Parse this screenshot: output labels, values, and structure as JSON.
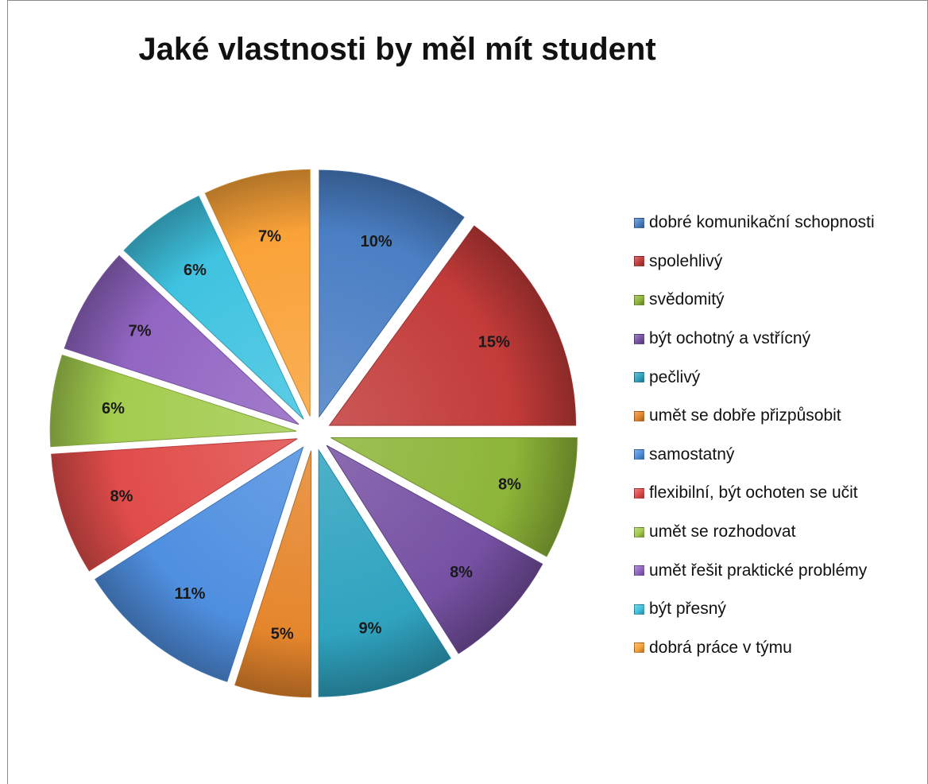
{
  "chart_data": {
    "type": "pie",
    "title": "Jaké vlastnosti by měl mít student",
    "legend_position": "right",
    "exploded": true,
    "slices": [
      {
        "label": "dobré komunikační schopnosti",
        "value": 10,
        "value_label": "10%",
        "color": "#4a7fc4"
      },
      {
        "label": "spolehlivý",
        "value": 15,
        "value_label": "15%",
        "color": "#c23b39"
      },
      {
        "label": "svědomitý",
        "value": 8,
        "value_label": "8%",
        "color": "#8db538"
      },
      {
        "label": "být ochotný a vstřícný",
        "value": 8,
        "value_label": "8%",
        "color": "#7651a3"
      },
      {
        "label": "pečlivý",
        "value": 9,
        "value_label": "9%",
        "color": "#2fa3bf"
      },
      {
        "label": "umět se dobře přizpůsobit",
        "value": 5,
        "value_label": "5%",
        "color": "#e5862c"
      },
      {
        "label": "samostatný",
        "value": 11,
        "value_label": "11%",
        "color": "#4f8fe0"
      },
      {
        "label": "flexibilní, být ochoten se učit",
        "value": 8,
        "value_label": "8%",
        "color": "#e04c4a"
      },
      {
        "label": "umět se rozhodovat",
        "value": 6,
        "value_label": "6%",
        "color": "#a3cc4e"
      },
      {
        "label": "umět řešit praktické problémy",
        "value": 7,
        "value_label": "7%",
        "color": "#9165c2"
      },
      {
        "label": "být přesný",
        "value": 6,
        "value_label": "6%",
        "color": "#3fc3e0"
      },
      {
        "label": "dobrá práce v týmu",
        "value": 7,
        "value_label": "7%",
        "color": "#f9a238"
      }
    ]
  }
}
